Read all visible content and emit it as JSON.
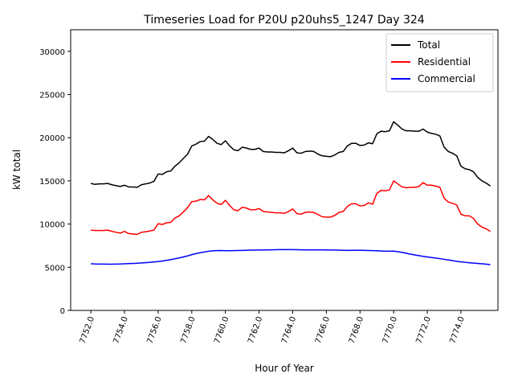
{
  "chart_data": {
    "type": "line",
    "title": "Timeseries Load for P20U p20uhs5_1247  Day 324",
    "xlabel": "Hour of Year",
    "ylabel": "kW total",
    "xlim": [
      7750.8,
      7776.2
    ],
    "ylim": [
      0,
      32500
    ],
    "xticks": [
      7752,
      7754,
      7756,
      7758,
      7760,
      7762,
      7764,
      7766,
      7768,
      7770,
      7772,
      7774
    ],
    "xtick_labels": [
      "7752.0",
      "7754.0",
      "7756.0",
      "7758.0",
      "7760.0",
      "7762.0",
      "7764.0",
      "7766.0",
      "7768.0",
      "7770.0",
      "7772.0",
      "7774.0"
    ],
    "yticks": [
      0,
      5000,
      10000,
      15000,
      20000,
      25000,
      30000
    ],
    "ytick_labels": [
      "0",
      "5000",
      "10000",
      "15000",
      "20000",
      "25000",
      "30000"
    ],
    "legend_position": "top-right",
    "x_start": 7752,
    "x_step": 0.25,
    "series": [
      {
        "name": "Total",
        "color": "#000000",
        "values": [
          14700,
          14600,
          14650,
          14650,
          14700,
          14550,
          14450,
          14350,
          14500,
          14300,
          14300,
          14250,
          14550,
          14650,
          14750,
          14950,
          15800,
          15750,
          16050,
          16150,
          16700,
          17100,
          17600,
          18100,
          19050,
          19250,
          19550,
          19600,
          20150,
          19800,
          19350,
          19200,
          19650,
          19050,
          18600,
          18500,
          18900,
          18800,
          18650,
          18650,
          18800,
          18400,
          18350,
          18350,
          18300,
          18300,
          18250,
          18500,
          18800,
          18250,
          18200,
          18400,
          18450,
          18400,
          18100,
          17900,
          17850,
          17800,
          18000,
          18300,
          18400,
          19050,
          19350,
          19350,
          19100,
          19150,
          19400,
          19300,
          20450,
          20750,
          20700,
          20800,
          21850,
          21450,
          21000,
          20800,
          20800,
          20750,
          20750,
          21000,
          20650,
          20500,
          20400,
          20200,
          18900,
          18400,
          18200,
          17900,
          16700,
          16400,
          16300,
          16050,
          15400,
          15000,
          14750,
          14400
        ]
      },
      {
        "name": "Residential",
        "color": "#ff0000",
        "values": [
          9300,
          9250,
          9250,
          9250,
          9300,
          9150,
          9050,
          8950,
          9150,
          8900,
          8850,
          8800,
          9050,
          9100,
          9200,
          9300,
          10050,
          9950,
          10150,
          10200,
          10700,
          10950,
          11400,
          11900,
          12600,
          12650,
          12850,
          12800,
          13300,
          12800,
          12400,
          12250,
          12750,
          12150,
          11650,
          11550,
          11950,
          11850,
          11650,
          11650,
          11800,
          11450,
          11400,
          11350,
          11300,
          11300,
          11250,
          11450,
          11750,
          11200,
          11150,
          11350,
          11400,
          11350,
          11100,
          10850,
          10800,
          10800,
          11000,
          11350,
          11450,
          12050,
          12350,
          12350,
          12100,
          12150,
          12450,
          12300,
          13550,
          13900,
          13850,
          13950,
          15000,
          14650,
          14300,
          14200,
          14250,
          14250,
          14350,
          14800,
          14500,
          14500,
          14400,
          14250,
          13000,
          12550,
          12400,
          12200,
          11150,
          10950,
          10950,
          10650,
          10000,
          9650,
          9450,
          9150
        ]
      },
      {
        "name": "Commercial",
        "color": "#0000ff",
        "values": [
          5400,
          5380,
          5370,
          5370,
          5360,
          5360,
          5370,
          5380,
          5400,
          5420,
          5440,
          5460,
          5490,
          5530,
          5570,
          5610,
          5660,
          5720,
          5800,
          5880,
          5980,
          6080,
          6190,
          6310,
          6460,
          6580,
          6680,
          6760,
          6850,
          6900,
          6930,
          6940,
          6920,
          6920,
          6930,
          6940,
          6950,
          6960,
          6980,
          6990,
          7000,
          7000,
          7010,
          7020,
          7030,
          7040,
          7040,
          7040,
          7040,
          7030,
          7020,
          7010,
          7010,
          7010,
          7010,
          7010,
          7000,
          7000,
          6990,
          6980,
          6960,
          6950,
          6960,
          6960,
          6960,
          6950,
          6940,
          6930,
          6900,
          6880,
          6860,
          6860,
          6870,
          6800,
          6720,
          6620,
          6520,
          6430,
          6340,
          6260,
          6190,
          6120,
          6060,
          6000,
          5920,
          5840,
          5760,
          5680,
          5620,
          5570,
          5520,
          5480,
          5440,
          5400,
          5350,
          5300
        ]
      }
    ]
  }
}
